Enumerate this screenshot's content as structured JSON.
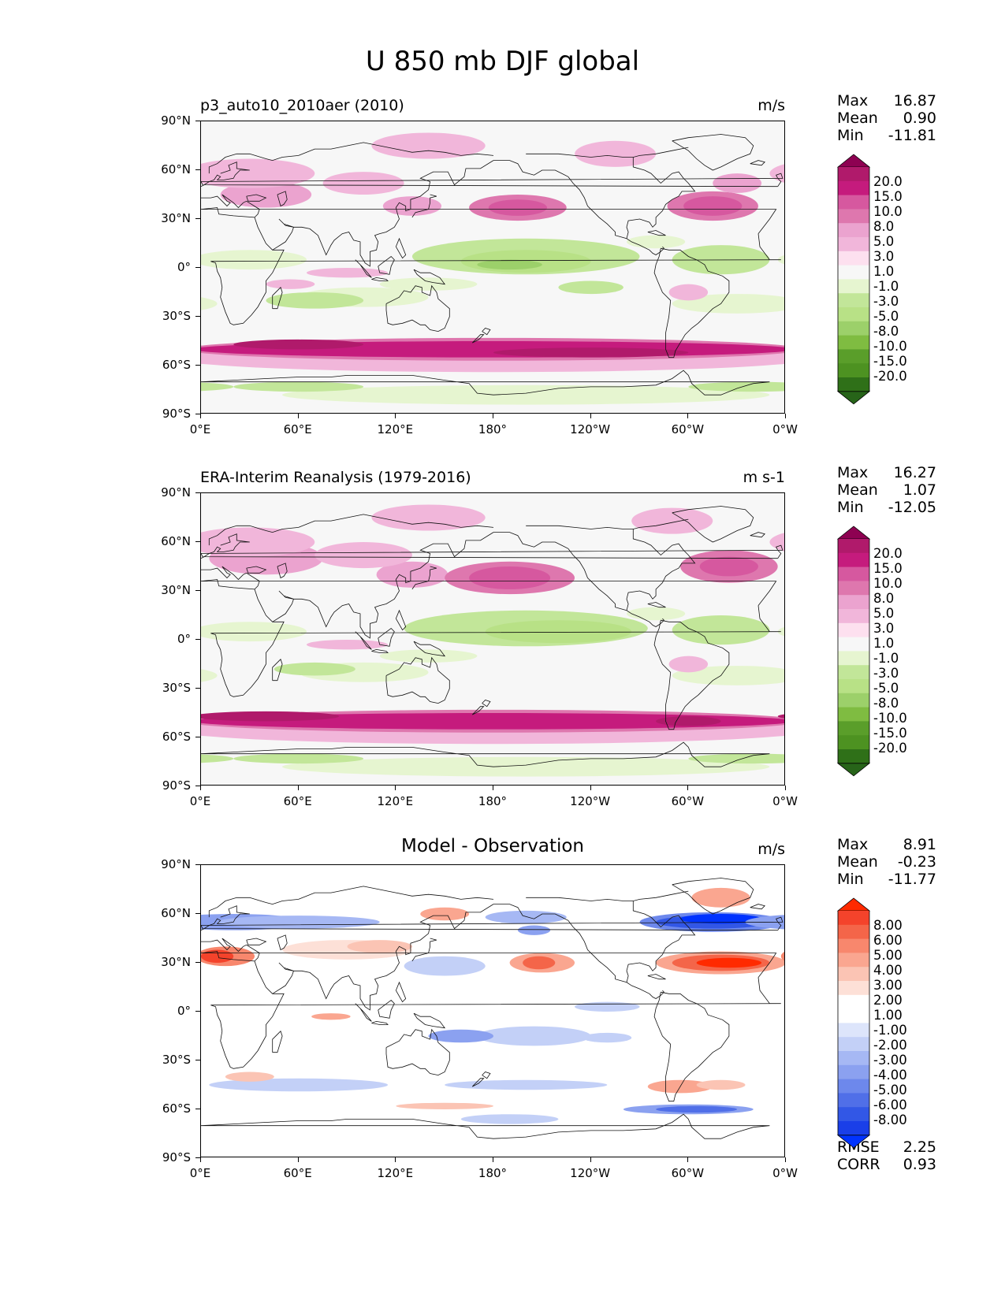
{
  "figure": {
    "title": "U 850 mb DJF global"
  },
  "axes": {
    "lat_ticks": [
      "90°N",
      "60°N",
      "30°N",
      "0°",
      "30°S",
      "60°S",
      "90°S"
    ],
    "lon_ticks": [
      "0°E",
      "60°E",
      "120°E",
      "180°",
      "120°W",
      "60°W",
      "0°W"
    ]
  },
  "panels": [
    {
      "name": "model",
      "left_title": "p3_auto10_2010aer (2010)",
      "center_title": "",
      "units": "m/s",
      "stats": [
        {
          "label": "Max",
          "value": "16.87"
        },
        {
          "label": "Mean",
          "value": "0.90"
        },
        {
          "label": "Min",
          "value": "-11.81"
        }
      ],
      "colorbar": {
        "labels": [
          "20.0",
          "15.0",
          "10.0",
          "8.0",
          "5.0",
          "3.0",
          "1.0",
          "-1.0",
          "-3.0",
          "-5.0",
          "-8.0",
          "-10.0",
          "-15.0",
          "-20.0"
        ],
        "colors": [
          "#8e0152",
          "#b01a6b",
          "#c51b7d",
          "#d6589f",
          "#de77ae",
          "#eba3cf",
          "#f1b6da",
          "#fde0ef",
          "#f7f7f7",
          "#e6f5d0",
          "#c2e699",
          "#b8e186",
          "#9cd06a",
          "#7fbc41",
          "#5a9e2a",
          "#4d9221",
          "#2f7018",
          "#276419"
        ]
      }
    },
    {
      "name": "observation",
      "left_title": "ERA-Interim Reanalysis (1979-2016)",
      "center_title": "",
      "units": "m s-1",
      "stats": [
        {
          "label": "Max",
          "value": "16.27"
        },
        {
          "label": "Mean",
          "value": "1.07"
        },
        {
          "label": "Min",
          "value": "-12.05"
        }
      ],
      "colorbar": {
        "labels": [
          "20.0",
          "15.0",
          "10.0",
          "8.0",
          "5.0",
          "3.0",
          "1.0",
          "-1.0",
          "-3.0",
          "-5.0",
          "-8.0",
          "-10.0",
          "-15.0",
          "-20.0"
        ],
        "colors": [
          "#8e0152",
          "#b01a6b",
          "#c51b7d",
          "#d6589f",
          "#de77ae",
          "#eba3cf",
          "#f1b6da",
          "#fde0ef",
          "#f7f7f7",
          "#e6f5d0",
          "#c2e699",
          "#b8e186",
          "#9cd06a",
          "#7fbc41",
          "#5a9e2a",
          "#4d9221",
          "#2f7018",
          "#276419"
        ]
      }
    },
    {
      "name": "difference",
      "left_title": "",
      "center_title": "Model - Observation",
      "units": "m/s",
      "stats": [
        {
          "label": "Max",
          "value": "8.91"
        },
        {
          "label": "Mean",
          "value": "-0.23"
        },
        {
          "label": "Min",
          "value": "-11.77"
        }
      ],
      "extra_stats": [
        {
          "label": "RMSE",
          "value": "2.25"
        },
        {
          "label": "CORR",
          "value": "0.93"
        }
      ],
      "colorbar": {
        "labels": [
          "8.00",
          "6.00",
          "5.00",
          "4.00",
          "3.00",
          "2.00",
          "1.00",
          "-1.00",
          "-2.00",
          "-3.00",
          "-4.00",
          "-5.00",
          "-6.00",
          "-8.00"
        ],
        "colors": [
          "#ff2a00",
          "#f4432b",
          "#f46549",
          "#f8876d",
          "#faa690",
          "#fbc4b4",
          "#fde0d7",
          "#ffffff",
          "#ffffff",
          "#dde5fb",
          "#c3d0f7",
          "#a6b8f4",
          "#8ba1f0",
          "#6d88ec",
          "#506fe8",
          "#3257e6",
          "#1a3fe8",
          "#0033ff"
        ]
      }
    }
  ],
  "chart_data": {
    "type": "heatmap",
    "title": "U 850 mb DJF global",
    "projection": "PlateCarree",
    "xlim": [
      0,
      360
    ],
    "ylim": [
      -90,
      90
    ],
    "panels": [
      {
        "name": "p3_auto10_2010aer (2010)",
        "units": "m/s",
        "max": 16.87,
        "mean": 0.9,
        "min": -11.81,
        "levels": [
          -20,
          -15,
          -10,
          -8,
          -5,
          -3,
          -1,
          1,
          3,
          5,
          8,
          10,
          15,
          20
        ]
      },
      {
        "name": "ERA-Interim Reanalysis (1979-2016)",
        "units": "m s-1",
        "max": 16.27,
        "mean": 1.07,
        "min": -12.05,
        "levels": [
          -20,
          -15,
          -10,
          -8,
          -5,
          -3,
          -1,
          1,
          3,
          5,
          8,
          10,
          15,
          20
        ]
      },
      {
        "name": "Model - Observation",
        "units": "m/s",
        "max": 8.91,
        "mean": -0.23,
        "min": -11.77,
        "rmse": 2.25,
        "corr": 0.93,
        "levels": [
          -8,
          -6,
          -5,
          -4,
          -3,
          -2,
          -1,
          1,
          2,
          3,
          4,
          5,
          6,
          8
        ]
      }
    ]
  }
}
